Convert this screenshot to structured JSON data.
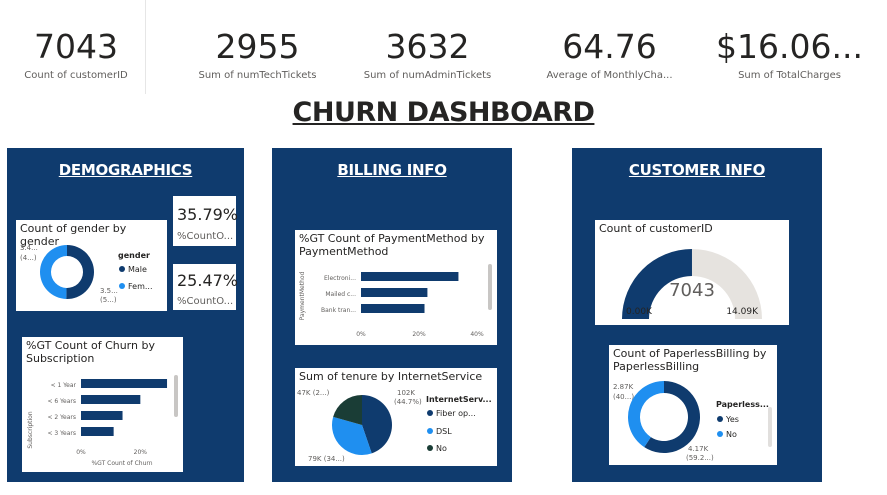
{
  "kpis": [
    {
      "value": "7043",
      "label": "Count of customerID"
    },
    {
      "value": "2955",
      "label": "Sum of numTechTickets"
    },
    {
      "value": "3632",
      "label": "Sum of numAdminTickets"
    },
    {
      "value": "64.76",
      "label": "Average of MonthlyCha..."
    },
    {
      "value": "$16.06...",
      "label": "Sum of TotalCharges"
    }
  ],
  "dashboard_title": "CHURN DASHBOARD",
  "demographics": {
    "title": "DEMOGRAPHICS",
    "gender_card": {
      "title": "Count of gender by gender",
      "legend_title": "gender",
      "legend": [
        "Male",
        "Fem..."
      ],
      "label_top": "3.4...",
      "label_top2": "(4...)",
      "label_bottom": "3.5...",
      "label_bottom2": "(5...)",
      "colors": [
        "#0f3b6e",
        "#1f8ff0"
      ]
    },
    "pct_cards": [
      {
        "value": "35.79%",
        "label": "%CountO..."
      },
      {
        "value": "25.47%",
        "label": "%CountO..."
      }
    ],
    "churn_card": {
      "title": "%GT Count of Churn by Subscription",
      "axis_y_title": "Subscription",
      "axis_x_title": "%GT Count of Churn",
      "ticks": [
        "0%",
        "20%"
      ]
    }
  },
  "billing": {
    "title": "BILLING  INFO",
    "payment_card": {
      "title": "%GT Count of PaymentMethod by PaymentMethod",
      "axis_y_title": "PaymentMethod",
      "ticks": [
        "0%",
        "20%",
        "40%"
      ]
    },
    "tenure_card": {
      "title": "Sum of tenure by InternetService",
      "legend_title": "InternetServ...",
      "legend": [
        "Fiber op...",
        "DSL",
        "No"
      ],
      "label_top_right": "102K",
      "label_top_right2": "(44.7%)",
      "label_top_left": "47K (2...)",
      "label_bottom": "79K (34...)",
      "colors": [
        "#0f3b6e",
        "#1f8ff0",
        "#1a3d36"
      ]
    }
  },
  "customer": {
    "title": "CUSTOMER INFO",
    "gauge_card": {
      "title": "Count of customerID",
      "value": "7043",
      "min": "0.00K",
      "max": "14.09K"
    },
    "paperless_card": {
      "title": "Count of PaperlessBilling by PaperlessBilling",
      "legend_title": "Paperless...",
      "legend": [
        "Yes",
        "No"
      ],
      "label_top": "2.87K",
      "label_top2": "(40...)",
      "label_bottom": "4.17K",
      "label_bottom2": "(59.2...)",
      "colors": [
        "#0f3b6e",
        "#1f8ff0"
      ]
    }
  },
  "chart_data": [
    {
      "type": "pie",
      "title": "Count of gender by gender",
      "categories": [
        "Male",
        "Female"
      ],
      "values": [
        3555,
        3488
      ]
    },
    {
      "type": "bar",
      "title": "%GT Count of Churn by Subscription",
      "categories": [
        "< 1 Year",
        "< 6 Years",
        "< 2 Years",
        "< 3 Years"
      ],
      "values": [
        29,
        20,
        14,
        11
      ],
      "xlabel": "%GT Count of Churn",
      "ylabel": "Subscription",
      "xlim": [
        0,
        30
      ]
    },
    {
      "type": "bar",
      "title": "%GT Count of PaymentMethod by PaymentMethod",
      "categories": [
        "Electroni...",
        "Mailed c...",
        "Bank tran..."
      ],
      "values": [
        33.6,
        22.9,
        21.9
      ],
      "xlabel": "",
      "ylabel": "PaymentMethod",
      "xlim": [
        0,
        40
      ]
    },
    {
      "type": "pie",
      "title": "Sum of tenure by InternetService",
      "categories": [
        "Fiber op...",
        "DSL",
        "No"
      ],
      "values": [
        102,
        79,
        47
      ]
    },
    {
      "type": "pie",
      "title": "Count of PaperlessBilling by PaperlessBilling",
      "categories": [
        "Yes",
        "No"
      ],
      "values": [
        4170,
        2870
      ]
    }
  ]
}
